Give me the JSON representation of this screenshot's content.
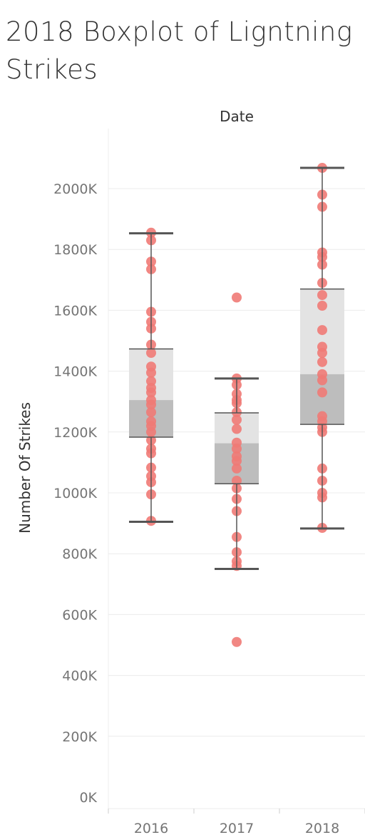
{
  "chart_data": {
    "type": "boxplot",
    "title": "2018 Boxplot of Ligntning Strikes",
    "header_label": "Date",
    "ylabel": "Number Of Strikes",
    "ylim": [
      0,
      2070000
    ],
    "yticks": [
      0,
      200000,
      400000,
      600000,
      800000,
      1000000,
      1200000,
      1400000,
      1600000,
      1800000,
      2000000
    ],
    "ytick_labels": [
      "0K",
      "200K",
      "400K",
      "600K",
      "800K",
      "1000K",
      "1200K",
      "1400K",
      "1600K",
      "1800K",
      "2000K"
    ],
    "categories": [
      "2016",
      "2017",
      "2018"
    ],
    "grid": true,
    "colors": {
      "point": "#ef7a76",
      "box_upper": "#e3e3e3",
      "box_lower": "#bdbdbd",
      "whisker": "#555555",
      "grid": "#ececec"
    },
    "boxes": [
      {
        "category": "2016",
        "whisker_low": 905000,
        "q1": 1183000,
        "median": 1305000,
        "q3": 1473000,
        "whisker_high": 1853000,
        "points": [
          1855000,
          1830000,
          1760000,
          1735000,
          1595000,
          1562000,
          1540000,
          1487000,
          1460000,
          1415000,
          1395000,
          1367000,
          1345000,
          1330000,
          1305000,
          1290000,
          1265000,
          1235000,
          1220000,
          1200000,
          1173000,
          1145000,
          1130000,
          1083000,
          1055000,
          1035000,
          995000,
          908000
        ]
      },
      {
        "category": "2017",
        "whisker_low": 750000,
        "q1": 1030000,
        "median": 1163000,
        "q3": 1263000,
        "whisker_high": 1376000,
        "points": [
          1642000,
          1376000,
          1355000,
          1325000,
          1305000,
          1295000,
          1265000,
          1240000,
          1210000,
          1165000,
          1145000,
          1120000,
          1105000,
          1080000,
          1040000,
          1015000,
          980000,
          940000,
          855000,
          805000,
          775000,
          760000,
          510000
        ]
      },
      {
        "category": "2018",
        "whisker_low": 883000,
        "q1": 1225000,
        "median": 1390000,
        "q3": 1670000,
        "whisker_high": 2068000,
        "points": [
          2068000,
          1980000,
          1940000,
          1790000,
          1775000,
          1750000,
          1690000,
          1650000,
          1615000,
          1535000,
          1480000,
          1460000,
          1430000,
          1390000,
          1370000,
          1330000,
          1252000,
          1235000,
          1215000,
          1200000,
          1080000,
          1040000,
          1000000,
          985000,
          885000
        ]
      }
    ]
  }
}
